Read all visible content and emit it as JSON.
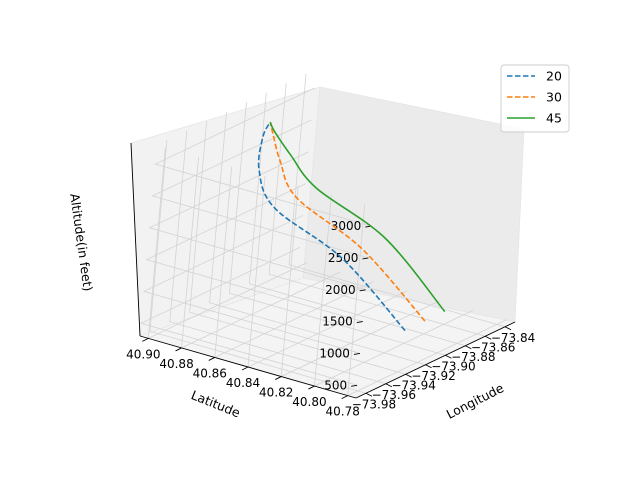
{
  "chart_data": {
    "type": "line",
    "projection": "3d",
    "title": "",
    "xlabel": "Longitude",
    "ylabel": "Latitude",
    "zlabel": "Altitude(in feet)",
    "x_ticks": [
      "−73.98",
      "−73.96",
      "−73.94",
      "−73.92",
      "−73.90",
      "−73.88",
      "−73.86",
      "−73.84"
    ],
    "y_ticks": [
      "40.90",
      "40.88",
      "40.86",
      "40.84",
      "40.82",
      "40.80",
      "40.78"
    ],
    "z_ticks": [
      "500",
      "1000",
      "1500",
      "2000",
      "2500",
      "3000"
    ],
    "legend_position": "top-right",
    "grid": true,
    "series": [
      {
        "name": "20",
        "style": "dashed",
        "color": "#1f77b4",
        "points": [
          [
            -73.9,
            40.8,
            500
          ],
          [
            -73.915,
            40.832,
            1500
          ],
          [
            -73.93,
            40.866,
            2150
          ],
          [
            -73.925,
            40.88,
            2600
          ],
          [
            -73.91,
            40.888,
            2950
          ],
          [
            -73.9,
            40.89,
            3100
          ]
        ]
      },
      {
        "name": "30",
        "style": "dashed",
        "color": "#ff7f0e",
        "points": [
          [
            -73.88,
            40.8,
            500
          ],
          [
            -73.895,
            40.832,
            1500
          ],
          [
            -73.908,
            40.866,
            2150
          ],
          [
            -73.904,
            40.88,
            2600
          ],
          [
            -73.9,
            40.888,
            2950
          ],
          [
            -73.9,
            40.89,
            3100
          ]
        ]
      },
      {
        "name": "45",
        "style": "solid",
        "color": "#2ca02c",
        "points": [
          [
            -73.86,
            40.8,
            500
          ],
          [
            -73.872,
            40.832,
            1500
          ],
          [
            -73.888,
            40.866,
            2150
          ],
          [
            -73.893,
            40.88,
            2600
          ],
          [
            -73.898,
            40.888,
            2950
          ],
          [
            -73.9,
            40.89,
            3100
          ]
        ]
      }
    ]
  }
}
